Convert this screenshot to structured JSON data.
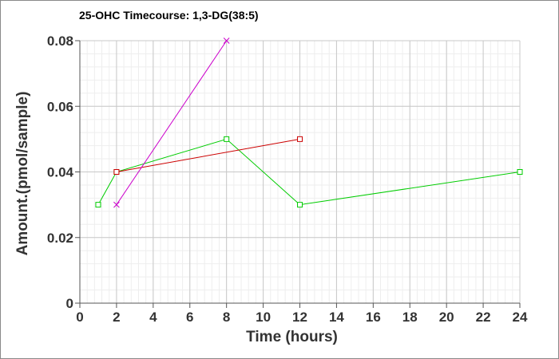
{
  "chart_data": {
    "type": "line",
    "title": "25-OHC Timecourse: 1,3-DG(38:5)",
    "xlabel": "Time (hours)",
    "ylabel": "Amount.(pmol/sample)",
    "xlim": [
      0,
      24
    ],
    "ylim": [
      0,
      0.08
    ],
    "x_ticks": [
      0,
      2,
      4,
      6,
      8,
      10,
      12,
      14,
      16,
      18,
      20,
      22,
      24
    ],
    "x_tick_labels": [
      "0",
      "2",
      "4",
      "6",
      "8",
      "10",
      "12",
      "14",
      "16",
      "18",
      "20",
      "22",
      "24"
    ],
    "y_ticks": [
      0,
      0.02,
      0.04,
      0.06,
      0.08
    ],
    "y_tick_labels": [
      "0",
      "0.02",
      "0.04",
      "0.06",
      "0.08"
    ],
    "grid": true,
    "series": [
      {
        "color": "#00cc00",
        "marker": "square",
        "x": [
          1,
          2,
          8,
          12,
          24
        ],
        "y": [
          0.03,
          0.04,
          0.05,
          0.03,
          0.04
        ]
      },
      {
        "color": "#cc0000",
        "marker": "square",
        "x": [
          2,
          12
        ],
        "y": [
          0.04,
          0.05
        ]
      },
      {
        "color": "#cc00cc",
        "marker": "x",
        "x": [
          2,
          8
        ],
        "y": [
          0.03,
          0.08
        ]
      }
    ]
  }
}
